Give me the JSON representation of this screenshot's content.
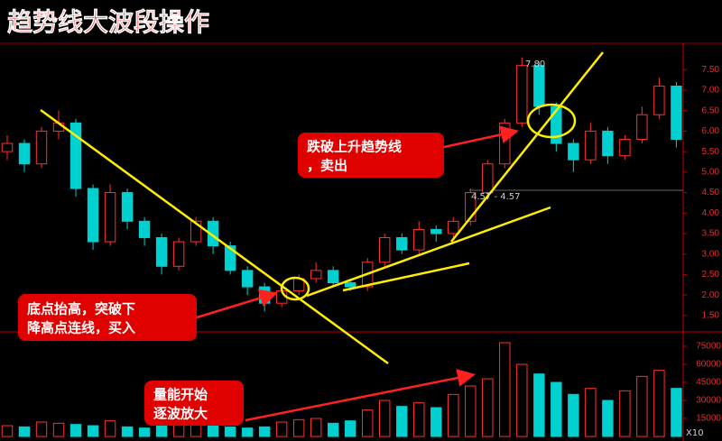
{
  "chart_data": {
    "type": "candlestick",
    "title": "趋势线大波段操作",
    "open": [
      5.5,
      5.7,
      5.2,
      6.0,
      6.2,
      4.6,
      3.3,
      4.5,
      3.8,
      3.4,
      2.7,
      3.3,
      3.8,
      3.2,
      2.6,
      2.2,
      1.8,
      2.1,
      2.4,
      2.6,
      2.3,
      2.2,
      2.8,
      3.4,
      3.1,
      3.6,
      3.5,
      3.8,
      4.5,
      5.2,
      6.2,
      7.6,
      6.6,
      5.7,
      5.3,
      6.0,
      5.4,
      5.8,
      6.4,
      7.1
    ],
    "high": [
      5.9,
      5.8,
      6.1,
      6.5,
      6.3,
      4.7,
      4.7,
      4.6,
      3.9,
      3.5,
      3.4,
      3.9,
      3.9,
      3.3,
      2.7,
      2.3,
      2.2,
      2.5,
      2.8,
      2.7,
      2.4,
      2.9,
      3.5,
      3.5,
      3.8,
      3.7,
      3.9,
      4.6,
      5.3,
      6.3,
      7.8,
      7.7,
      6.7,
      5.8,
      6.2,
      6.1,
      5.9,
      6.6,
      7.3,
      7.2
    ],
    "low": [
      5.3,
      5.0,
      5.1,
      5.8,
      4.4,
      3.1,
      3.2,
      3.6,
      3.2,
      2.5,
      2.6,
      3.2,
      3.0,
      2.5,
      2.0,
      1.6,
      1.7,
      2.0,
      2.3,
      2.2,
      2.1,
      2.1,
      2.7,
      3.0,
      3.0,
      3.3,
      3.4,
      3.7,
      4.4,
      5.1,
      6.1,
      6.4,
      5.5,
      5.0,
      5.2,
      5.2,
      5.3,
      5.7,
      6.3,
      5.6
    ],
    "close": [
      5.7,
      5.2,
      6.0,
      6.2,
      4.6,
      3.3,
      4.5,
      3.8,
      3.4,
      2.7,
      3.3,
      3.8,
      3.2,
      2.6,
      2.2,
      1.8,
      2.1,
      2.4,
      2.6,
      2.3,
      2.2,
      2.8,
      3.4,
      3.1,
      3.6,
      3.5,
      3.8,
      4.5,
      5.2,
      6.2,
      7.6,
      6.6,
      5.7,
      5.3,
      6.0,
      5.4,
      5.8,
      6.4,
      7.1,
      5.8
    ],
    "volume": [
      9000,
      8000,
      12000,
      11000,
      10000,
      9000,
      13000,
      8000,
      7000,
      9000,
      10000,
      12000,
      9000,
      8000,
      7000,
      8000,
      12000,
      14000,
      15000,
      11000,
      13000,
      22000,
      30000,
      25000,
      28000,
      24000,
      35000,
      42000,
      48000,
      78000,
      60000,
      52000,
      45000,
      35000,
      40000,
      30000,
      38000,
      50000,
      55000,
      40000
    ],
    "up_color": "#ff3030",
    "down_color": "#00d0d0",
    "ylim": [
      1.1,
      8.1
    ],
    "yticks": [
      {
        "value": 1.5,
        "label": "1.50"
      },
      {
        "value": 2.0,
        "label": "2.00"
      },
      {
        "value": 2.5,
        "label": "2.50"
      },
      {
        "value": 3.0,
        "label": "3.00"
      },
      {
        "value": 3.5,
        "label": "3.50"
      },
      {
        "value": 4.0,
        "label": "4.00"
      },
      {
        "value": 4.5,
        "label": "4.50"
      },
      {
        "value": 5.0,
        "label": "5.00"
      },
      {
        "value": 5.5,
        "label": "5.50"
      },
      {
        "value": 6.0,
        "label": "6.00"
      },
      {
        "value": 6.5,
        "label": "6.50"
      },
      {
        "value": 7.0,
        "label": "7.00"
      },
      {
        "value": 7.5,
        "label": "7.50"
      }
    ],
    "y2lim": [
      0,
      84000
    ],
    "y2ticks": [
      15000,
      30000,
      45000,
      60000,
      75000
    ],
    "annotations": {
      "peak_label": "7.80",
      "level_label": "4.57 - 4.57",
      "buy_note": [
        "底点抬高，突破下",
        "降高点连线，买入"
      ],
      "sell_note": [
        "跌破上升趋势线",
        "，卖出"
      ],
      "volume_note": [
        "量能开始",
        "逐波放大"
      ],
      "scale_label": "X10"
    }
  }
}
